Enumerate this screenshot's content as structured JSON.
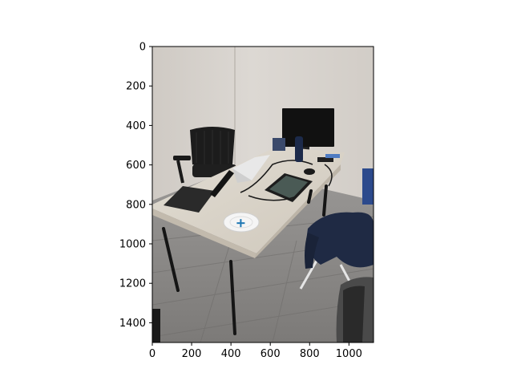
{
  "plot": {
    "xlim": [
      0,
      1125
    ],
    "ylim": [
      1500,
      0
    ],
    "x_ticks": [
      {
        "value": 0,
        "label": "0"
      },
      {
        "value": 200,
        "label": "200"
      },
      {
        "value": 400,
        "label": "400"
      },
      {
        "value": 600,
        "label": "600"
      },
      {
        "value": 800,
        "label": "800"
      },
      {
        "value": 1000,
        "label": "1000"
      }
    ],
    "y_ticks": [
      {
        "value": 0,
        "label": "0"
      },
      {
        "value": 200,
        "label": "200"
      },
      {
        "value": 400,
        "label": "400"
      },
      {
        "value": 600,
        "label": "600"
      },
      {
        "value": 800,
        "label": "800"
      },
      {
        "value": 1000,
        "label": "1000"
      },
      {
        "value": 1200,
        "label": "1200"
      },
      {
        "value": 1400,
        "label": "1400"
      }
    ],
    "marker": {
      "x": 450,
      "y": 895,
      "shape": "plus",
      "color": "#1f77b4"
    }
  },
  "photo": {
    "subject": "office room with folding table, laptops, monitor, chair, plate",
    "colors": {
      "wall": "#d8d4cf",
      "floor": "#8c8a88",
      "table": "#d9d3c8",
      "dark": "#1e1e1e",
      "jacket": "#1f2a44"
    }
  }
}
